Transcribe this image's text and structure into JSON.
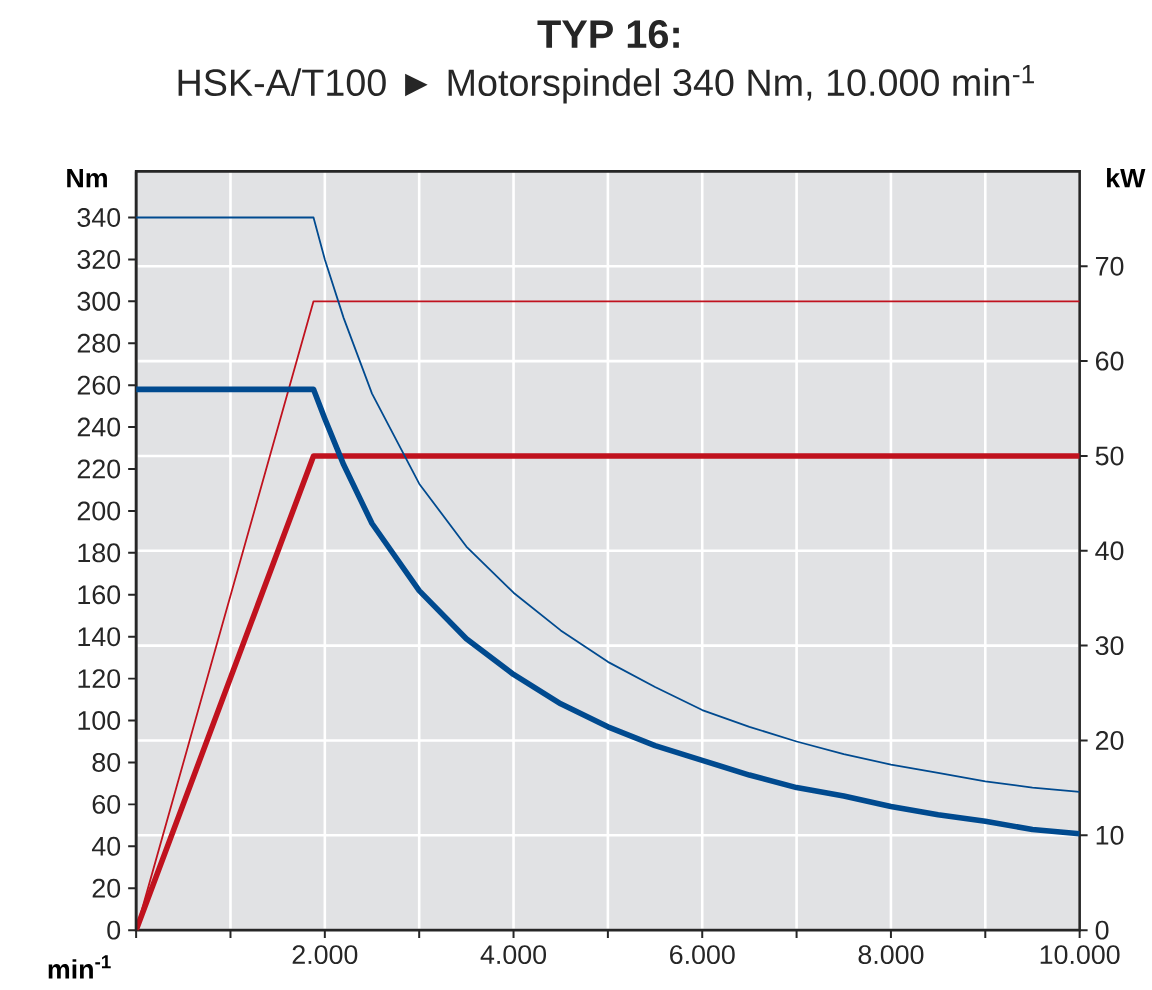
{
  "chart_data": {
    "type": "line",
    "title": "TYP 16:",
    "subtitle": "HSK-A/T100 ► Motorspindel 340 Nm, 10.000 min$^{-1}$",
    "xlabel": "min$^{-1}$",
    "ylabel": "Nm",
    "y2label": "kW",
    "xlim": [
      0,
      10000
    ],
    "xticks": [
      {
        "value": 0,
        "label": null
      },
      {
        "value": 1000,
        "label": null
      },
      {
        "value": 2000,
        "label": "2.000"
      },
      {
        "value": 3000,
        "label": null
      },
      {
        "value": 4000,
        "label": "4.000"
      },
      {
        "value": 5000,
        "label": null
      },
      {
        "value": 6000,
        "label": "6.000"
      },
      {
        "value": 7000,
        "label": null
      },
      {
        "value": 8000,
        "label": "8.000"
      },
      {
        "value": 9000,
        "label": null
      },
      {
        "value": 10000,
        "label": "10.000"
      }
    ],
    "ylim": [
      0,
      362
    ],
    "yticks": [
      0,
      20,
      40,
      60,
      80,
      100,
      120,
      140,
      160,
      180,
      200,
      220,
      240,
      260,
      280,
      300,
      320,
      340
    ],
    "y2lim": [
      0,
      80
    ],
    "y2ticks": [
      0,
      10,
      20,
      30,
      40,
      50,
      60,
      70
    ],
    "grid": true,
    "series": [
      {
        "color": "#c0121e",
        "axis": "y2",
        "x": [
          0,
          1880,
          10000
        ],
        "values": [
          0,
          66.3,
          66.3
        ]
      },
      {
        "color": "#c0121e",
        "axis": "y2",
        "x": [
          0,
          1880,
          10000
        ],
        "values": [
          0,
          50,
          50
        ]
      },
      {
        "color": "#004a8f",
        "x": [
          0,
          1880,
          2000,
          2200,
          2500,
          3000,
          3500,
          4000,
          4500,
          5000,
          5500,
          6000,
          6500,
          7000,
          7500,
          8000,
          8500,
          9000,
          9500,
          10000
        ],
        "values": [
          340,
          340,
          320,
          292,
          256,
          213,
          183,
          161,
          143,
          128,
          116,
          105,
          97,
          90,
          84,
          79,
          75,
          71,
          68,
          66
        ]
      },
      {
        "color": "#004a8f",
        "x": [
          0,
          1880,
          2000,
          2200,
          2500,
          3000,
          3500,
          4000,
          4500,
          5000,
          5500,
          6000,
          6500,
          7000,
          7500,
          8000,
          8500,
          9000,
          9500,
          10000
        ],
        "values": [
          258,
          258,
          244,
          222,
          194,
          162,
          139,
          122,
          108,
          97,
          88,
          81,
          74,
          68,
          64,
          59,
          55,
          52,
          48,
          46
        ]
      }
    ]
  }
}
